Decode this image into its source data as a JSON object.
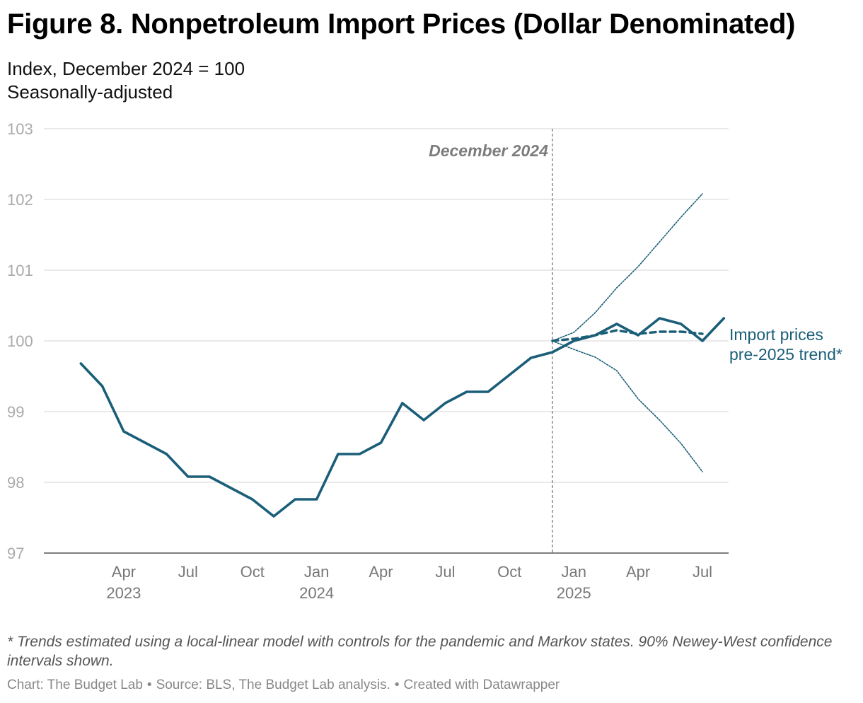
{
  "title": "Figure 8. Nonpetroleum Import Prices (Dollar Denominated)",
  "subtitle_lines": [
    "Index, December 2024 = 100",
    "Seasonally-adjusted"
  ],
  "chart_data": {
    "type": "line",
    "ylim": [
      97,
      103
    ],
    "y_ticks": [
      "97",
      "98",
      "99",
      "100",
      "101",
      "102",
      "103"
    ],
    "x_ticks": [
      {
        "label": "Apr",
        "year": "2023",
        "month_index": 3
      },
      {
        "label": "Jul",
        "year": "",
        "month_index": 6
      },
      {
        "label": "Oct",
        "year": "",
        "month_index": 9
      },
      {
        "label": "Jan",
        "year": "2024",
        "month_index": 12
      },
      {
        "label": "Apr",
        "year": "",
        "month_index": 15
      },
      {
        "label": "Jul",
        "year": "",
        "month_index": 18
      },
      {
        "label": "Oct",
        "year": "",
        "month_index": 21
      },
      {
        "label": "Jan",
        "year": "2025",
        "month_index": 24
      },
      {
        "label": "Apr",
        "year": "",
        "month_index": 27
      },
      {
        "label": "Jul",
        "year": "",
        "month_index": 30
      }
    ],
    "reference_line": {
      "label": "December 2024",
      "month_index": 23
    },
    "series": [
      {
        "name": "Import prices",
        "style": "solid",
        "color": "#1a5e78",
        "start_month_index": 1,
        "values": [
          99.68,
          99.36,
          98.72,
          98.56,
          98.4,
          98.08,
          98.08,
          97.92,
          97.76,
          97.52,
          97.76,
          97.76,
          98.4,
          98.4,
          98.56,
          99.12,
          98.88,
          99.12,
          99.28,
          99.28,
          99.52,
          99.76,
          99.84,
          100.0,
          100.08,
          100.24,
          100.08,
          100.32,
          100.24,
          100.0,
          100.32
        ]
      },
      {
        "name": "pre-2025 trend*",
        "style": "dashed",
        "color": "#1a5e78",
        "start_month_index": 23,
        "values": [
          100.0,
          100.03,
          100.08,
          100.15,
          100.1,
          100.13,
          100.13,
          100.1
        ]
      },
      {
        "name": "90% CI upper",
        "style": "dotted",
        "color": "#1a5e78",
        "start_month_index": 23,
        "values": [
          100.0,
          100.12,
          100.4,
          100.75,
          101.05,
          101.4,
          101.75,
          102.08
        ]
      },
      {
        "name": "90% CI lower",
        "style": "dotted",
        "color": "#1a5e78",
        "start_month_index": 23,
        "values": [
          100.0,
          99.88,
          99.77,
          99.58,
          99.18,
          98.88,
          98.55,
          98.15
        ]
      }
    ],
    "legend_labels": [
      "Import prices",
      "pre-2025 trend*"
    ],
    "colors": {
      "line": "#1a5e78",
      "grid": "#dddddd",
      "axis_text": "#8a8a8a",
      "reference": "#888888"
    }
  },
  "footnote": "* Trends estimated using a local-linear model with controls for the pandemic and Markov states. 90% Newey-West confidence intervals shown.",
  "credits": [
    "Chart: The Budget Lab",
    "Source: BLS, The Budget Lab analysis.",
    "Created with Datawrapper"
  ]
}
